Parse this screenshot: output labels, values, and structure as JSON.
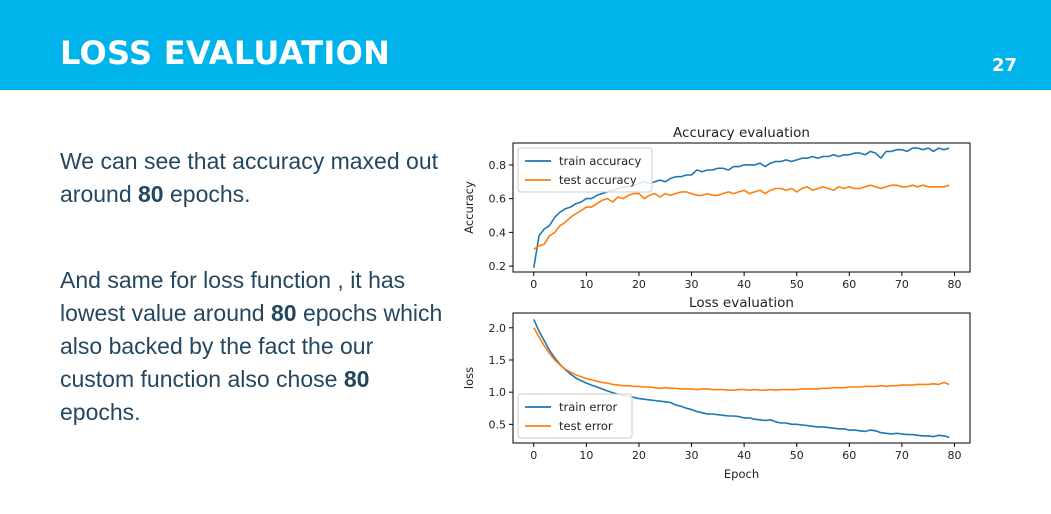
{
  "slide": {
    "title": "LOSS EVALUATION",
    "page_number": "27",
    "header_color": "#00b4eb",
    "text_color": "#24475f"
  },
  "body": {
    "para1": {
      "before": "We can see that accuracy maxed out around ",
      "bold": "80",
      "after": " epochs."
    },
    "para2": {
      "before": "And same for loss function , it has lowest value around ",
      "bold1": "80",
      "middle": " epochs which also backed by the fact the our custom function also chose ",
      "bold2": "80",
      "after": " epochs."
    }
  },
  "chart_data": [
    {
      "type": "line",
      "title": "Accuracy evaluation",
      "xlabel": "",
      "ylabel": "Accuracy",
      "xlim": [
        -3.95,
        82.95
      ],
      "ylim": [
        0.165,
        0.93
      ],
      "xticks": [
        0,
        10,
        20,
        30,
        40,
        50,
        60,
        70,
        80
      ],
      "yticks": [
        0.2,
        0.4,
        0.6,
        0.8
      ],
      "legend": "top-left",
      "series": [
        {
          "name": "train accuracy",
          "color": "#1f77b4",
          "x": [
            0,
            1,
            2,
            3,
            4,
            5,
            6,
            7,
            8,
            9,
            10,
            11,
            12,
            13,
            14,
            15,
            16,
            17,
            18,
            19,
            20,
            21,
            22,
            23,
            24,
            25,
            26,
            27,
            28,
            29,
            30,
            31,
            32,
            33,
            34,
            35,
            36,
            37,
            38,
            39,
            40,
            41,
            42,
            43,
            44,
            45,
            46,
            47,
            48,
            49,
            50,
            51,
            52,
            53,
            54,
            55,
            56,
            57,
            58,
            59,
            60,
            61,
            62,
            63,
            64,
            65,
            66,
            67,
            68,
            69,
            70,
            71,
            72,
            73,
            74,
            75,
            76,
            77,
            78,
            79
          ],
          "y": [
            0.19,
            0.38,
            0.42,
            0.44,
            0.49,
            0.52,
            0.54,
            0.55,
            0.57,
            0.58,
            0.6,
            0.6,
            0.62,
            0.63,
            0.64,
            0.65,
            0.66,
            0.67,
            0.67,
            0.68,
            0.69,
            0.7,
            0.69,
            0.7,
            0.71,
            0.7,
            0.72,
            0.73,
            0.73,
            0.74,
            0.74,
            0.77,
            0.76,
            0.77,
            0.77,
            0.78,
            0.78,
            0.77,
            0.79,
            0.79,
            0.8,
            0.8,
            0.8,
            0.81,
            0.79,
            0.81,
            0.82,
            0.82,
            0.83,
            0.82,
            0.83,
            0.84,
            0.84,
            0.85,
            0.84,
            0.85,
            0.85,
            0.86,
            0.85,
            0.86,
            0.86,
            0.87,
            0.87,
            0.86,
            0.88,
            0.87,
            0.84,
            0.88,
            0.88,
            0.89,
            0.89,
            0.88,
            0.9,
            0.9,
            0.89,
            0.9,
            0.88,
            0.9,
            0.89,
            0.9
          ]
        },
        {
          "name": "test accuracy",
          "color": "#ff7f0e",
          "x": [
            0,
            1,
            2,
            3,
            4,
            5,
            6,
            7,
            8,
            9,
            10,
            11,
            12,
            13,
            14,
            15,
            16,
            17,
            18,
            19,
            20,
            21,
            22,
            23,
            24,
            25,
            26,
            27,
            28,
            29,
            30,
            31,
            32,
            33,
            34,
            35,
            36,
            37,
            38,
            39,
            40,
            41,
            42,
            43,
            44,
            45,
            46,
            47,
            48,
            49,
            50,
            51,
            52,
            53,
            54,
            55,
            56,
            57,
            58,
            59,
            60,
            61,
            62,
            63,
            64,
            65,
            66,
            67,
            68,
            69,
            70,
            71,
            72,
            73,
            74,
            75,
            76,
            77,
            78,
            79
          ],
          "y": [
            0.3,
            0.32,
            0.33,
            0.38,
            0.4,
            0.44,
            0.46,
            0.49,
            0.51,
            0.53,
            0.55,
            0.55,
            0.57,
            0.59,
            0.6,
            0.58,
            0.61,
            0.6,
            0.62,
            0.63,
            0.63,
            0.6,
            0.62,
            0.63,
            0.61,
            0.63,
            0.62,
            0.63,
            0.64,
            0.64,
            0.63,
            0.62,
            0.62,
            0.63,
            0.62,
            0.62,
            0.63,
            0.64,
            0.63,
            0.64,
            0.65,
            0.63,
            0.64,
            0.65,
            0.63,
            0.65,
            0.66,
            0.66,
            0.65,
            0.66,
            0.64,
            0.66,
            0.67,
            0.65,
            0.66,
            0.67,
            0.66,
            0.65,
            0.67,
            0.66,
            0.67,
            0.66,
            0.66,
            0.67,
            0.68,
            0.67,
            0.66,
            0.67,
            0.68,
            0.68,
            0.67,
            0.67,
            0.68,
            0.67,
            0.68,
            0.67,
            0.67,
            0.67,
            0.67,
            0.68
          ]
        }
      ]
    },
    {
      "type": "line",
      "title": "Loss evaluation",
      "xlabel": "Epoch",
      "ylabel": "loss",
      "xlim": [
        -3.95,
        82.95
      ],
      "ylim": [
        0.21,
        2.23
      ],
      "xticks": [
        0,
        10,
        20,
        30,
        40,
        50,
        60,
        70,
        80
      ],
      "yticks": [
        0.5,
        1.0,
        1.5,
        2.0
      ],
      "legend": "bottom-left",
      "series": [
        {
          "name": "train error",
          "color": "#1f77b4",
          "x": [
            0,
            1,
            2,
            3,
            4,
            5,
            6,
            7,
            8,
            9,
            10,
            11,
            12,
            13,
            14,
            15,
            16,
            17,
            18,
            19,
            20,
            21,
            22,
            23,
            24,
            25,
            26,
            27,
            28,
            29,
            30,
            31,
            32,
            33,
            34,
            35,
            36,
            37,
            38,
            39,
            40,
            41,
            42,
            43,
            44,
            45,
            46,
            47,
            48,
            49,
            50,
            51,
            52,
            53,
            54,
            55,
            56,
            57,
            58,
            59,
            60,
            61,
            62,
            63,
            64,
            65,
            66,
            67,
            68,
            69,
            70,
            71,
            72,
            73,
            74,
            75,
            76,
            77,
            78,
            79
          ],
          "y": [
            2.13,
            1.95,
            1.8,
            1.65,
            1.53,
            1.43,
            1.35,
            1.28,
            1.22,
            1.18,
            1.14,
            1.11,
            1.08,
            1.05,
            1.02,
            0.99,
            0.97,
            0.95,
            0.93,
            0.92,
            0.9,
            0.89,
            0.88,
            0.87,
            0.86,
            0.85,
            0.84,
            0.8,
            0.78,
            0.75,
            0.73,
            0.7,
            0.68,
            0.66,
            0.66,
            0.65,
            0.64,
            0.63,
            0.63,
            0.62,
            0.6,
            0.6,
            0.58,
            0.57,
            0.56,
            0.57,
            0.54,
            0.52,
            0.52,
            0.5,
            0.5,
            0.49,
            0.48,
            0.47,
            0.46,
            0.46,
            0.45,
            0.44,
            0.43,
            0.43,
            0.41,
            0.41,
            0.4,
            0.39,
            0.41,
            0.4,
            0.37,
            0.36,
            0.35,
            0.36,
            0.35,
            0.34,
            0.34,
            0.33,
            0.32,
            0.32,
            0.31,
            0.33,
            0.32,
            0.3
          ]
        },
        {
          "name": "test error",
          "color": "#ff7f0e",
          "x": [
            0,
            1,
            2,
            3,
            4,
            5,
            6,
            7,
            8,
            9,
            10,
            11,
            12,
            13,
            14,
            15,
            16,
            17,
            18,
            19,
            20,
            21,
            22,
            23,
            24,
            25,
            26,
            27,
            28,
            29,
            30,
            31,
            32,
            33,
            34,
            35,
            36,
            37,
            38,
            39,
            40,
            41,
            42,
            43,
            44,
            45,
            46,
            47,
            48,
            49,
            50,
            51,
            52,
            53,
            54,
            55,
            56,
            57,
            58,
            59,
            60,
            61,
            62,
            63,
            64,
            65,
            66,
            67,
            68,
            69,
            70,
            71,
            72,
            73,
            74,
            75,
            76,
            77,
            78,
            79
          ],
          "y": [
            2.0,
            1.86,
            1.72,
            1.6,
            1.5,
            1.42,
            1.36,
            1.31,
            1.27,
            1.24,
            1.21,
            1.19,
            1.17,
            1.15,
            1.14,
            1.12,
            1.11,
            1.1,
            1.1,
            1.09,
            1.09,
            1.08,
            1.08,
            1.07,
            1.06,
            1.07,
            1.06,
            1.06,
            1.05,
            1.05,
            1.05,
            1.04,
            1.05,
            1.05,
            1.04,
            1.04,
            1.04,
            1.03,
            1.03,
            1.04,
            1.04,
            1.03,
            1.04,
            1.03,
            1.03,
            1.04,
            1.03,
            1.04,
            1.04,
            1.04,
            1.04,
            1.05,
            1.05,
            1.05,
            1.05,
            1.06,
            1.06,
            1.07,
            1.07,
            1.07,
            1.08,
            1.08,
            1.08,
            1.09,
            1.09,
            1.09,
            1.1,
            1.09,
            1.1,
            1.1,
            1.11,
            1.11,
            1.11,
            1.12,
            1.12,
            1.12,
            1.13,
            1.12,
            1.15,
            1.12
          ]
        }
      ]
    }
  ]
}
